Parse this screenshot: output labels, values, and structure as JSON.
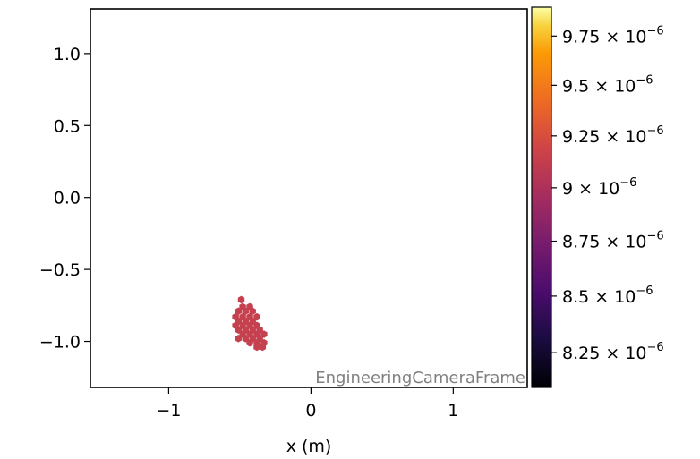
{
  "chart_data": {
    "type": "scatter",
    "marker": "hexagon",
    "xlabel": "x  (m)",
    "ylabel": "",
    "xlim": [
      -1.55,
      1.52
    ],
    "ylim": [
      -1.32,
      1.31
    ],
    "xticks": [
      -1,
      0,
      1
    ],
    "xtick_labels": [
      "−1",
      "0",
      "1"
    ],
    "yticks": [
      1.0,
      0.5,
      0.0,
      -0.5,
      -1.0
    ],
    "ytick_labels": [
      "1.0",
      "0.5",
      "0.0",
      "−0.5",
      "−1.0"
    ],
    "frame_label": "EngineeringCameraFrame",
    "marker_color": "#c5414f",
    "colorbar": {
      "colormap": "inferno",
      "scale": "log",
      "range": [
        8.1e-06,
        9.9e-06
      ],
      "ticks": [
        {
          "value": 9.75e-06,
          "mantissa": "9.75",
          "exponent": "−6"
        },
        {
          "value": 9.5e-06,
          "mantissa": "9.5",
          "exponent": "−6"
        },
        {
          "value": 9.25e-06,
          "mantissa": "9.25",
          "exponent": "−6"
        },
        {
          "value": 9e-06,
          "mantissa": "9",
          "exponent": "−6"
        },
        {
          "value": 8.75e-06,
          "mantissa": "8.75",
          "exponent": "−6"
        },
        {
          "value": 8.5e-06,
          "mantissa": "8.5",
          "exponent": "−6"
        },
        {
          "value": 8.25e-06,
          "mantissa": "8.25",
          "exponent": "−6"
        }
      ],
      "times_sign": "×",
      "base": "10"
    },
    "points": [
      [
        -0.49,
        -0.71
      ],
      [
        -0.48,
        -0.76
      ],
      [
        -0.43,
        -0.76
      ],
      [
        -0.51,
        -0.79
      ],
      [
        -0.46,
        -0.79
      ],
      [
        -0.41,
        -0.79
      ],
      [
        -0.53,
        -0.83
      ],
      [
        -0.48,
        -0.83
      ],
      [
        -0.43,
        -0.83
      ],
      [
        -0.38,
        -0.83
      ],
      [
        -0.51,
        -0.86
      ],
      [
        -0.46,
        -0.86
      ],
      [
        -0.41,
        -0.86
      ],
      [
        -0.53,
        -0.89
      ],
      [
        -0.48,
        -0.89
      ],
      [
        -0.43,
        -0.89
      ],
      [
        -0.38,
        -0.89
      ],
      [
        -0.51,
        -0.92
      ],
      [
        -0.46,
        -0.92
      ],
      [
        -0.41,
        -0.92
      ],
      [
        -0.36,
        -0.92
      ],
      [
        -0.48,
        -0.95
      ],
      [
        -0.43,
        -0.95
      ],
      [
        -0.38,
        -0.95
      ],
      [
        -0.33,
        -0.95
      ],
      [
        -0.51,
        -0.98
      ],
      [
        -0.46,
        -0.98
      ],
      [
        -0.41,
        -0.98
      ],
      [
        -0.36,
        -0.98
      ],
      [
        -0.43,
        -1.01
      ],
      [
        -0.38,
        -1.01
      ],
      [
        -0.33,
        -1.01
      ],
      [
        -0.38,
        -1.04
      ],
      [
        -0.34,
        -1.04
      ]
    ]
  }
}
